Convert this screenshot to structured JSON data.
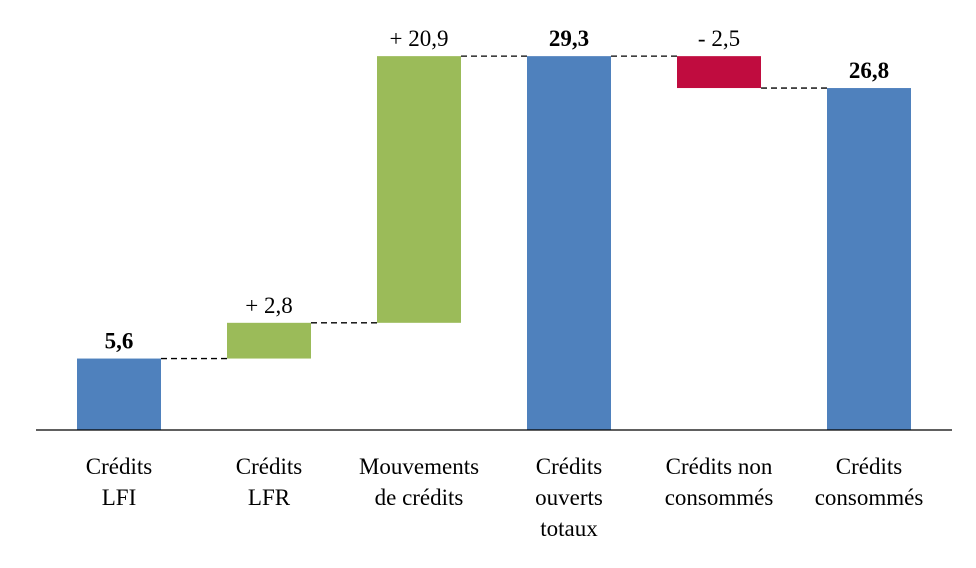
{
  "chart_data": {
    "type": "waterfall",
    "categories": [
      "Crédits\nLFI",
      "Crédits\nLFR",
      "Mouvements\nde crédits",
      "Crédits\nouverts\ntotaux",
      "Crédits non\nconsommés",
      "Crédits\nconsommés"
    ],
    "values": [
      5.6,
      2.8,
      20.9,
      29.3,
      -2.5,
      26.8
    ],
    "value_labels": [
      "5,6",
      "+ 2,8",
      "+ 20,9",
      "29,3",
      "- 2,5",
      "26,8"
    ],
    "measure": [
      "total",
      "relative",
      "relative",
      "total",
      "relative",
      "total"
    ],
    "colors": {
      "total": "#4f81bd",
      "increase": "#9bbb59",
      "decrease": "#c00c3f"
    },
    "ylim": [
      0,
      33.7
    ]
  }
}
